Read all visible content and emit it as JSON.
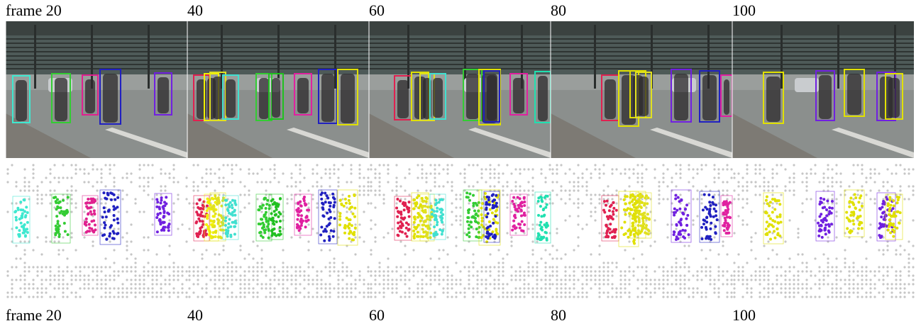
{
  "top_labels": [
    "frame 20",
    "40",
    "60",
    "80",
    "100"
  ],
  "bottom_labels": [
    "frame 20",
    "40",
    "60",
    "80",
    "100"
  ]
}
